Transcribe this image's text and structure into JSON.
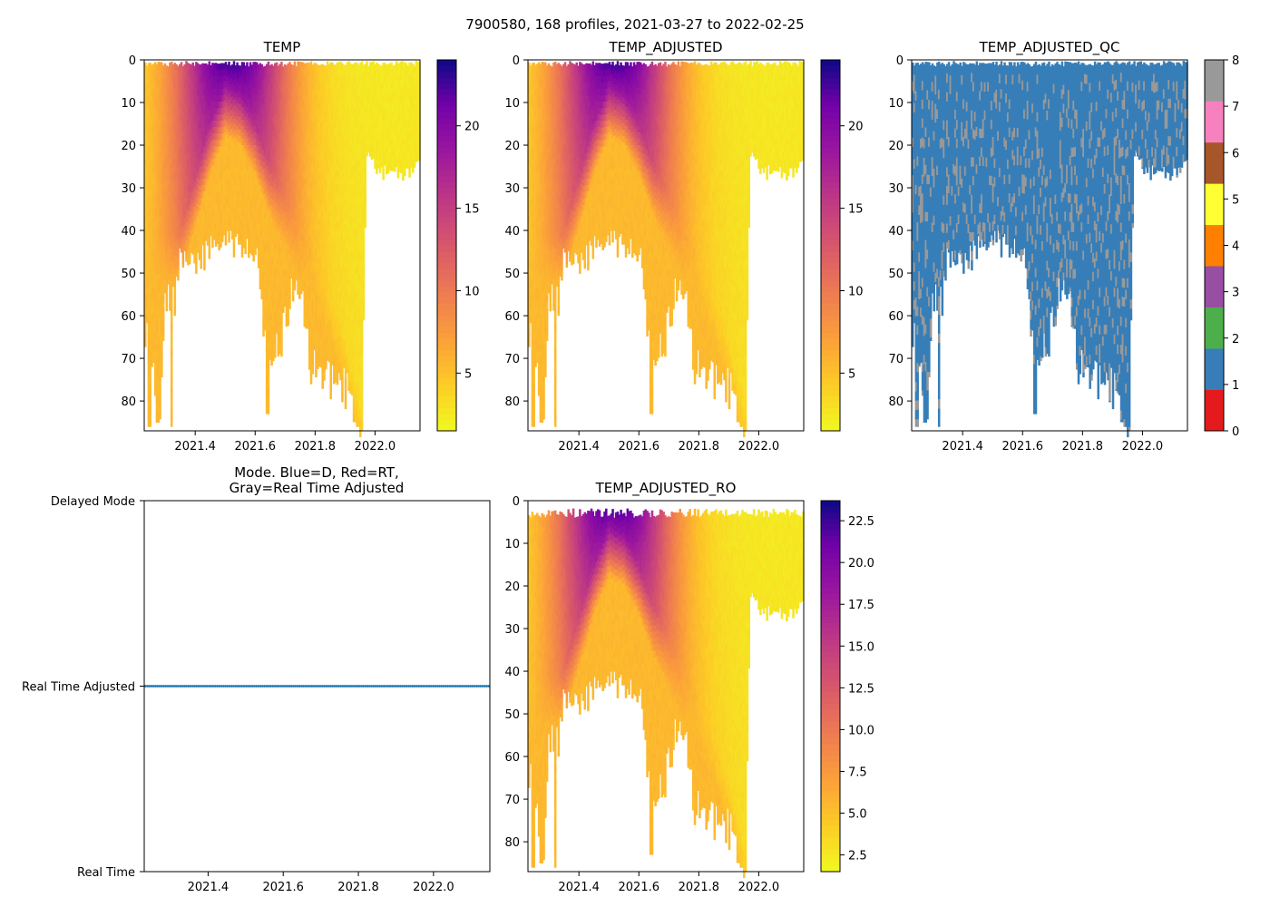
{
  "suptitle": "7900580, 168 profiles, 2021-03-27 to 2022-02-25",
  "chart_data": [
    {
      "id": "temp",
      "type": "heatmap",
      "title": "TEMP",
      "colormap": "plasma_r",
      "xlim": [
        2021.23,
        2022.15
      ],
      "ylim": [
        87,
        0
      ],
      "xticks": [
        2021.4,
        2021.6,
        2021.8,
        2022.0
      ],
      "xticklabels": [
        "2021.4",
        "2021.6",
        "2021.8",
        "2022.0"
      ],
      "yticks": [
        0,
        10,
        20,
        30,
        40,
        50,
        60,
        70,
        80
      ],
      "yticklabels": [
        "0",
        "10",
        "20",
        "30",
        "40",
        "50",
        "60",
        "70",
        "80"
      ],
      "colorbar": {
        "range": [
          1.5,
          24
        ],
        "ticks": [
          5,
          10,
          15,
          20
        ],
        "ticklabels": [
          "5",
          "10",
          "15",
          "20"
        ]
      }
    },
    {
      "id": "tadj",
      "type": "heatmap",
      "title": "TEMP_ADJUSTED",
      "colormap": "plasma_r",
      "xlim": [
        2021.23,
        2022.15
      ],
      "ylim": [
        87,
        0
      ],
      "xticks": [
        2021.4,
        2021.6,
        2021.8,
        2022.0
      ],
      "xticklabels": [
        "2021.4",
        "2021.6",
        "2021.8",
        "2022.0"
      ],
      "yticks": [
        0,
        10,
        20,
        30,
        40,
        50,
        60,
        70,
        80
      ],
      "yticklabels": [
        "0",
        "10",
        "20",
        "30",
        "40",
        "50",
        "60",
        "70",
        "80"
      ],
      "colorbar": {
        "range": [
          1.5,
          24
        ],
        "ticks": [
          5,
          10,
          15,
          20
        ],
        "ticklabels": [
          "5",
          "10",
          "15",
          "20"
        ]
      }
    },
    {
      "id": "qc",
      "type": "heatmap",
      "title": "TEMP_ADJUSTED_QC",
      "colormap": "qc",
      "xlim": [
        2021.23,
        2022.15
      ],
      "ylim": [
        87,
        0
      ],
      "xticks": [
        2021.4,
        2021.6,
        2021.8,
        2022.0
      ],
      "xticklabels": [
        "2021.4",
        "2021.6",
        "2021.8",
        "2022.0"
      ],
      "yticks": [
        0,
        10,
        20,
        30,
        40,
        50,
        60,
        70,
        80
      ],
      "yticklabels": [
        "0",
        "10",
        "20",
        "30",
        "40",
        "50",
        "60",
        "70",
        "80"
      ],
      "dominant_flag": 1,
      "secondary_flag": 8,
      "colorbar": {
        "range": [
          0,
          8
        ],
        "ticks": [
          0,
          1,
          2,
          3,
          4,
          5,
          6,
          7,
          8
        ],
        "ticklabels": [
          "0",
          "1",
          "2",
          "3",
          "4",
          "5",
          "6",
          "7",
          "8"
        ],
        "colors": [
          "#e41a1c",
          "#377eb8",
          "#4daf4a",
          "#984ea3",
          "#ff7f00",
          "#ffff33",
          "#a65628",
          "#f781bf",
          "#999999"
        ]
      }
    },
    {
      "id": "mode",
      "type": "scatter",
      "title_lines": [
        "Mode. Blue=D, Red=RT,",
        "Gray=Real Time Adjusted"
      ],
      "xlim": [
        2021.23,
        2022.15
      ],
      "xticks": [
        2021.4,
        2021.6,
        2021.8,
        2022.0
      ],
      "xticklabels": [
        "2021.4",
        "2021.6",
        "2021.8",
        "2022.0"
      ],
      "ylim": [
        0,
        2
      ],
      "yticks": [
        2,
        1,
        0
      ],
      "yticklabels": [
        "Delayed Mode",
        "Real Time Adjusted",
        "Real Time"
      ],
      "profile_count": 168,
      "mode_value": 1,
      "marker_color": "#1f77b4"
    },
    {
      "id": "tro",
      "type": "heatmap",
      "title": "TEMP_ADJUSTED_RO",
      "colormap": "plasma_r",
      "xlim": [
        2021.23,
        2022.15
      ],
      "ylim": [
        87,
        0
      ],
      "xticks": [
        2021.4,
        2021.6,
        2021.8,
        2022.0
      ],
      "xticklabels": [
        "2021.4",
        "2021.6",
        "2021.8",
        "2022.0"
      ],
      "yticks": [
        0,
        10,
        20,
        30,
        40,
        50,
        60,
        70,
        80
      ],
      "yticklabels": [
        "0",
        "10",
        "20",
        "30",
        "40",
        "50",
        "60",
        "70",
        "80"
      ],
      "colorbar": {
        "range": [
          1.5,
          23.7
        ],
        "ticks": [
          2.5,
          5.0,
          7.5,
          10.0,
          12.5,
          15.0,
          17.5,
          20.0,
          22.5
        ],
        "ticklabels": [
          "2.5",
          "5.0",
          "7.5",
          "10.0",
          "12.5",
          "15.0",
          "17.5",
          "20.0",
          "22.5"
        ]
      }
    }
  ],
  "profiles": {
    "count": 168,
    "start": 2021.23,
    "end": 2022.15,
    "max_depth_anchors": [
      [
        2021.23,
        67
      ],
      [
        2021.26,
        74
      ],
      [
        2021.28,
        86
      ],
      [
        2021.3,
        58
      ],
      [
        2021.33,
        60
      ],
      [
        2021.35,
        48
      ],
      [
        2021.4,
        52
      ],
      [
        2021.45,
        46
      ],
      [
        2021.5,
        45
      ],
      [
        2021.55,
        46
      ],
      [
        2021.6,
        47
      ],
      [
        2021.62,
        55
      ],
      [
        2021.64,
        82
      ],
      [
        2021.66,
        70
      ],
      [
        2021.69,
        68
      ],
      [
        2021.72,
        58
      ],
      [
        2021.75,
        55
      ],
      [
        2021.78,
        72
      ],
      [
        2021.8,
        77
      ],
      [
        2021.84,
        79
      ],
      [
        2021.88,
        80
      ],
      [
        2021.92,
        84
      ],
      [
        2021.95,
        87
      ],
      [
        2021.96,
        73
      ],
      [
        2021.97,
        22
      ],
      [
        2021.99,
        26
      ],
      [
        2022.02,
        28
      ],
      [
        2022.06,
        28
      ],
      [
        2022.1,
        29
      ],
      [
        2022.13,
        27
      ],
      [
        2022.15,
        26
      ]
    ],
    "spikes": [
      [
        2021.245,
        86
      ],
      [
        2021.275,
        85
      ],
      [
        2021.32,
        86
      ],
      [
        2021.64,
        83
      ],
      [
        2021.785,
        76
      ],
      [
        2021.94,
        86
      ],
      [
        2021.955,
        87
      ]
    ],
    "start_depth_anchors": [
      [
        2021.23,
        0.4
      ],
      [
        2021.44,
        0.2
      ],
      [
        2021.5,
        0.1
      ],
      [
        2021.6,
        0.4
      ],
      [
        2022.15,
        0.2
      ]
    ],
    "ro_start_depth": 4,
    "warm_peak": {
      "center": 2021.52,
      "width": 0.1,
      "max_temp": 23.5,
      "winter_temp": 2.5
    },
    "mixed_layer_anchors": [
      [
        2021.23,
        45
      ],
      [
        2021.35,
        40
      ],
      [
        2021.45,
        15
      ],
      [
        2021.5,
        6
      ],
      [
        2021.55,
        8
      ],
      [
        2021.6,
        15
      ],
      [
        2021.65,
        25
      ],
      [
        2021.7,
        32
      ],
      [
        2021.75,
        40
      ],
      [
        2021.8,
        46
      ],
      [
        2021.85,
        55
      ],
      [
        2021.9,
        65
      ],
      [
        2021.97,
        87
      ]
    ],
    "deep_temp": 5.5
  }
}
